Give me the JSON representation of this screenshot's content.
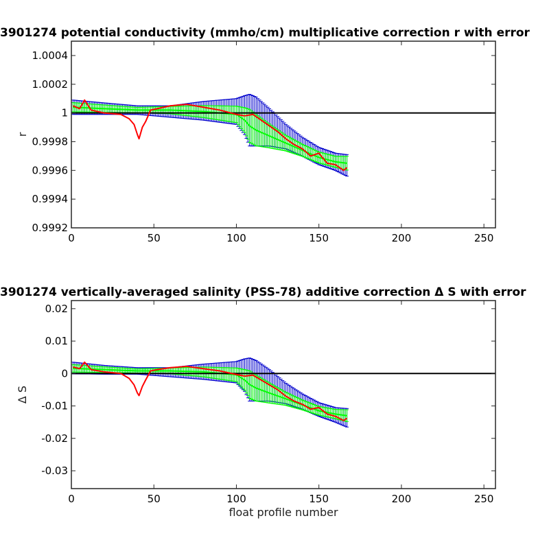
{
  "chart_data": [
    {
      "type": "line",
      "title": "3901274 potential conductivity (mmho/cm) multiplicative correction r with error",
      "xlabel": "",
      "ylabel": "r",
      "xlim": [
        0,
        257
      ],
      "ylim": [
        0.9992,
        1.0005
      ],
      "xticks": [
        0,
        50,
        100,
        150,
        200,
        250
      ],
      "yticks": [
        0.9992,
        0.9994,
        0.9996,
        0.9998,
        1,
        1.0002,
        1.0004
      ],
      "ytick_labels": [
        "0.9992",
        "0.9994",
        "0.9996",
        "0.9998",
        "1",
        "1.0002",
        "1.0004"
      ],
      "reference_line": 1,
      "colors": {
        "red_series": "#ff0000",
        "green_band": "#00ff00",
        "blue_band": "#0000cc",
        "reference": "#000000"
      },
      "series": [
        {
          "x": [
            1,
            5,
            8,
            12,
            20,
            30,
            35,
            38,
            40,
            41,
            43,
            45,
            48,
            52,
            60,
            70,
            80,
            90,
            100,
            105,
            110,
            115,
            120,
            125,
            130,
            135,
            140,
            145,
            150,
            155,
            160,
            165,
            167
          ],
          "values": [
            1.00005,
            1.00003,
            1.00009,
            1.00002,
            1.0,
            0.99999,
            0.99996,
            0.99992,
            0.99985,
            0.99982,
            0.9999,
            0.99994,
            1.00002,
            1.00003,
            1.00005,
            1.00006,
            1.00004,
            1.00002,
            0.99999,
            0.99998,
            0.99999,
            0.99995,
            0.99991,
            0.99987,
            0.99982,
            0.99978,
            0.99975,
            0.9997,
            0.99972,
            0.99965,
            0.99964,
            0.9996,
            0.99962
          ]
        },
        {
          "x": [
            1,
            20,
            40,
            60,
            80,
            100,
            105,
            108,
            112,
            120,
            130,
            140,
            150,
            160,
            167
          ],
          "values": [
            1.00004,
            1.00003,
            1.00002,
            1.00002,
            1.00001,
            0.99999,
            0.99995,
            0.99991,
            0.99988,
            0.99984,
            0.99979,
            0.99974,
            0.99969,
            0.99966,
            0.99965
          ]
        }
      ],
      "error_band": {
        "x": [
          1,
          20,
          40,
          60,
          80,
          100,
          105,
          108,
          112,
          120,
          130,
          140,
          150,
          160,
          167
        ],
        "upper": [
          1.00009,
          1.00007,
          1.00005,
          1.00005,
          1.00008,
          1.0001,
          1.00012,
          1.00013,
          1.00011,
          1.00003,
          0.99992,
          0.99983,
          0.99976,
          0.99972,
          0.99971
        ],
        "lower": [
          0.99999,
          0.99999,
          0.99999,
          0.99997,
          0.99995,
          0.99992,
          0.99985,
          0.99977,
          0.99977,
          0.99977,
          0.99975,
          0.9997,
          0.99964,
          0.9996,
          0.99956
        ]
      }
    },
    {
      "type": "line",
      "title": "3901274 vertically-averaged salinity (PSS-78) additive correction Δ S with error",
      "xlabel": "float profile number",
      "ylabel": "Δ S",
      "xlim": [
        0,
        257
      ],
      "ylim": [
        -0.0355,
        0.0225
      ],
      "xticks": [
        0,
        50,
        100,
        150,
        200,
        250
      ],
      "yticks": [
        -0.03,
        -0.02,
        -0.01,
        0,
        0.01,
        0.02
      ],
      "ytick_labels": [
        "-0.03",
        "-0.02",
        "-0.01",
        "0",
        "0.01",
        "0.02"
      ],
      "reference_line": 0,
      "colors": {
        "red_series": "#ff0000",
        "green_band": "#00ff00",
        "blue_band": "#0000cc",
        "reference": "#000000"
      },
      "series": [
        {
          "x": [
            1,
            5,
            8,
            12,
            20,
            30,
            35,
            38,
            40,
            41,
            43,
            45,
            48,
            52,
            60,
            70,
            80,
            90,
            100,
            105,
            110,
            115,
            120,
            125,
            130,
            135,
            140,
            145,
            150,
            155,
            160,
            165,
            167
          ],
          "values": [
            0.002,
            0.0015,
            0.0035,
            0.0012,
            0.0005,
            0.0,
            -0.0015,
            -0.0035,
            -0.006,
            -0.0068,
            -0.004,
            -0.002,
            0.0008,
            0.0012,
            0.0018,
            0.0022,
            0.0015,
            0.0008,
            -0.0003,
            -0.0008,
            -0.0005,
            -0.002,
            -0.0035,
            -0.005,
            -0.007,
            -0.0085,
            -0.0095,
            -0.011,
            -0.0105,
            -0.0125,
            -0.0132,
            -0.0145,
            -0.0138
          ]
        },
        {
          "x": [
            1,
            20,
            40,
            60,
            80,
            100,
            105,
            108,
            112,
            120,
            130,
            140,
            150,
            160,
            167
          ],
          "values": [
            0.0016,
            0.0012,
            0.0008,
            0.0008,
            0.0005,
            -0.0004,
            -0.002,
            -0.0034,
            -0.0045,
            -0.006,
            -0.0078,
            -0.0097,
            -0.0115,
            -0.0125,
            -0.013
          ]
        }
      ],
      "error_band": {
        "x": [
          1,
          20,
          40,
          60,
          80,
          100,
          105,
          108,
          112,
          120,
          130,
          140,
          150,
          160,
          167
        ],
        "upper": [
          0.0035,
          0.0025,
          0.0018,
          0.0018,
          0.0029,
          0.0037,
          0.0045,
          0.0048,
          0.004,
          0.0012,
          -0.003,
          -0.0063,
          -0.009,
          -0.0105,
          -0.0108
        ],
        "lower": [
          -0.0001,
          -0.0002,
          -0.0002,
          -0.001,
          -0.0018,
          -0.0029,
          -0.0055,
          -0.0085,
          -0.0085,
          -0.0085,
          -0.0093,
          -0.011,
          -0.0132,
          -0.015,
          -0.0165
        ]
      }
    }
  ]
}
